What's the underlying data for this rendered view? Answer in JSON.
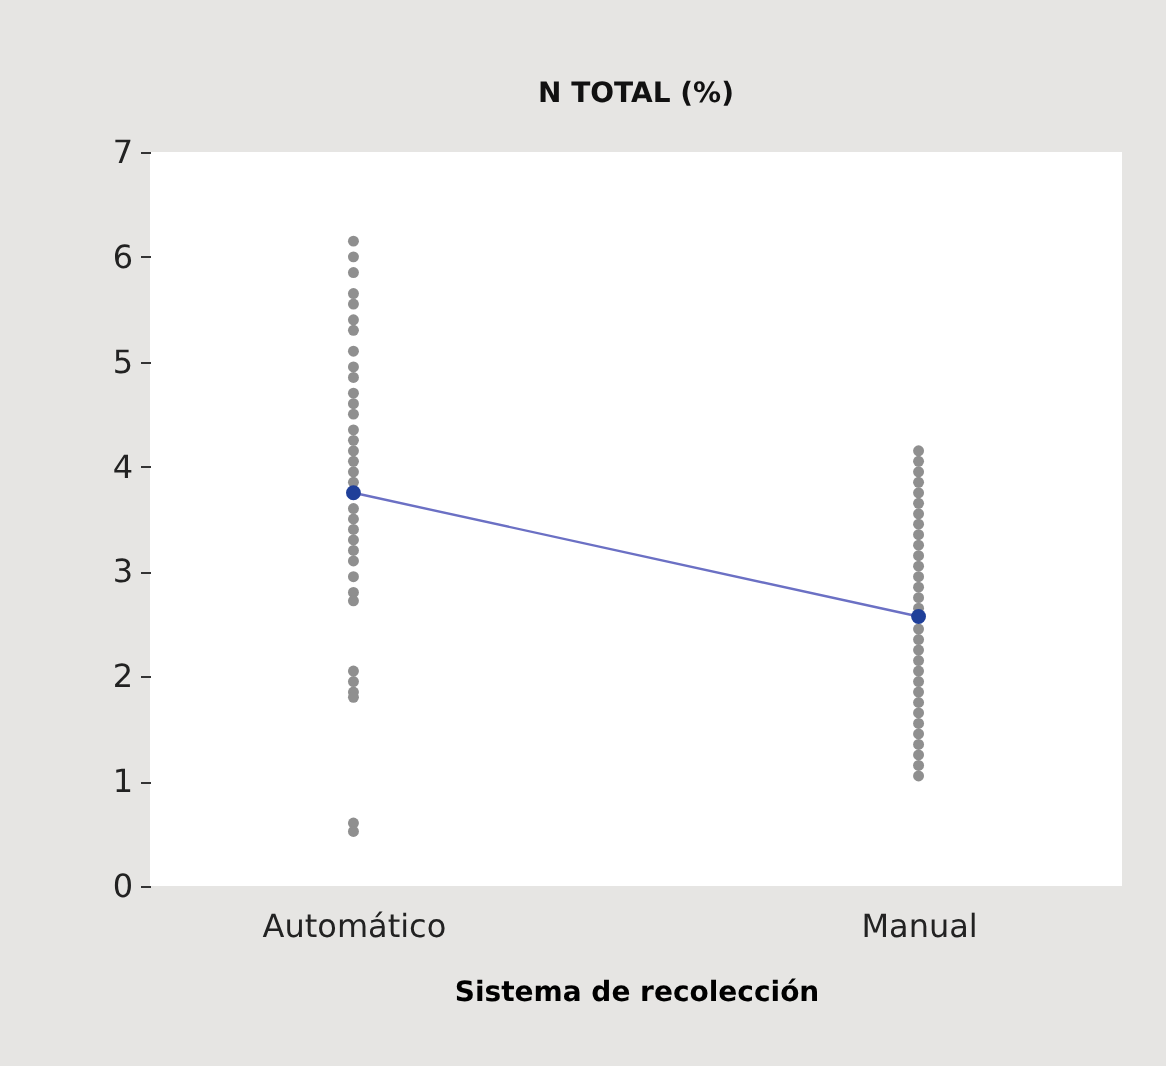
{
  "chart_data": {
    "type": "scatter",
    "title": "N TOTAL (%)",
    "xlabel": "Sistema de recolección",
    "categories": [
      "Automático",
      "Manual"
    ],
    "series": [
      {
        "color": "#8f8f8f",
        "x": [
          "Automático",
          "Automático",
          "Automático",
          "Automático",
          "Automático",
          "Automático",
          "Automático",
          "Automático",
          "Automático",
          "Automático",
          "Automático",
          "Automático",
          "Automático",
          "Automático",
          "Automático",
          "Automático",
          "Automático",
          "Automático",
          "Automático",
          "Automático",
          "Automático",
          "Automático",
          "Automático",
          "Automático",
          "Automático",
          "Automático",
          "Automático",
          "Automático",
          "Automático",
          "Automático",
          "Automático",
          "Automático",
          "Automático",
          "Automático",
          "Automático"
        ],
        "values": [
          6.15,
          6.0,
          5.85,
          5.65,
          5.55,
          5.4,
          5.3,
          5.1,
          4.95,
          4.85,
          4.7,
          4.6,
          4.5,
          4.35,
          4.25,
          4.15,
          4.05,
          3.95,
          3.85,
          null,
          3.6,
          3.5,
          3.4,
          3.3,
          3.2,
          3.1,
          2.95,
          2.8,
          2.72,
          2.05,
          1.95,
          1.85,
          1.8,
          0.6,
          0.52
        ]
      },
      {
        "color": "#8f8f8f",
        "x": [
          "Manual",
          "Manual",
          "Manual",
          "Manual",
          "Manual",
          "Manual",
          "Manual",
          "Manual",
          "Manual",
          "Manual",
          "Manual",
          "Manual",
          "Manual",
          "Manual",
          "Manual",
          "Manual",
          "Manual",
          "Manual",
          "Manual",
          "Manual",
          "Manual",
          "Manual",
          "Manual",
          "Manual",
          "Manual",
          "Manual",
          "Manual",
          "Manual",
          "Manual",
          "Manual",
          "Manual",
          "Manual"
        ],
        "values": [
          4.15,
          4.05,
          3.95,
          3.85,
          3.75,
          3.65,
          3.55,
          3.45,
          3.35,
          3.25,
          3.15,
          3.05,
          2.95,
          2.85,
          2.75,
          2.65,
          null,
          2.45,
          2.35,
          2.25,
          2.15,
          2.05,
          1.95,
          1.85,
          1.75,
          1.65,
          1.55,
          1.45,
          1.35,
          1.25,
          1.15,
          1.05
        ]
      },
      {
        "type": "line",
        "color": "#1f3f99",
        "x": [
          "Automático",
          "Manual"
        ],
        "values": [
          3.75,
          2.57
        ],
        "marker": "circle"
      }
    ],
    "ylim": [
      0,
      7
    ],
    "yticks": [
      0,
      1,
      2,
      3,
      4,
      5,
      6,
      7
    ],
    "grid": false
  }
}
